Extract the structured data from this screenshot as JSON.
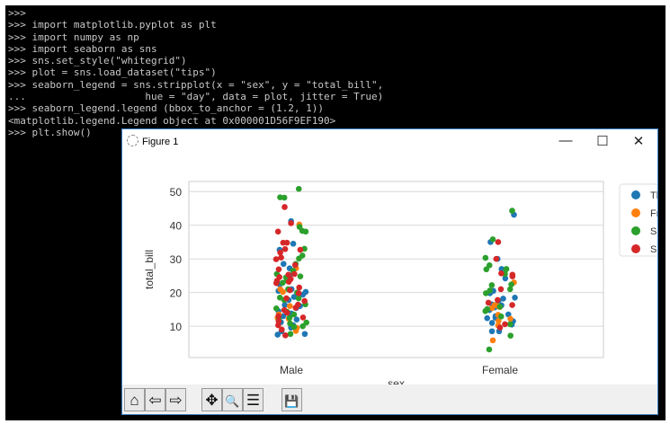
{
  "terminal": {
    "lines": [
      ">>>",
      ">>> import matplotlib.pyplot as plt",
      ">>> import numpy as np",
      ">>> import seaborn as sns",
      ">>> sns.set_style(\"whitegrid\")",
      ">>> plot = sns.load_dataset(\"tips\")",
      ">>> seaborn_legend = sns.stripplot(x = \"sex\", y = \"total_bill\",",
      "...                    hue = \"day\", data = plot, jitter = True)",
      ">>> seaborn_legend.legend (bbox_to_anchor = (1.2, 1))",
      "<matplotlib.legend.Legend object at 0x000001D56F9EF190>",
      ">>> plt.show()"
    ]
  },
  "window": {
    "title": "Figure 1",
    "minimize": "—",
    "maximize": "☐",
    "close": "✕"
  },
  "toolbar": {
    "icons": [
      "home-icon",
      "back-icon",
      "forward-icon",
      "pan-icon",
      "zoom-icon",
      "configure-icon",
      "save-icon"
    ],
    "glyphs": [
      "⌂",
      "⇦",
      "⇨",
      "✥",
      "🔍",
      "☰",
      "💾"
    ]
  },
  "chart_data": {
    "type": "scatter",
    "subtype": "stripplot",
    "xlabel": "sex",
    "ylabel": "total_bill",
    "categories": [
      "Male",
      "Female"
    ],
    "yticks": [
      10,
      20,
      30,
      40,
      50
    ],
    "ylim": [
      0.7,
      53
    ],
    "grid": true,
    "legend_placement": "outside-right",
    "series": [
      {
        "name": "Thur",
        "color": "#1f77b4",
        "values": {
          "Male": [
            41.2,
            34.5,
            32.7,
            28.5,
            27.2,
            21,
            20.5,
            19.4,
            18.7,
            17.8,
            16.3,
            16,
            15.4,
            14.5,
            13.8,
            13,
            12,
            11.2,
            10.3,
            9.6,
            8.5,
            7.5,
            7.7,
            20.2,
            22.4,
            25.1
          ],
          "Female": [
            43.1,
            35,
            30,
            27,
            24.2,
            20.5,
            19.8,
            18.5,
            17.5,
            16.5,
            16.2,
            15.6,
            14.8,
            13.5,
            13,
            12.5,
            12.4,
            11.5,
            11,
            10.5,
            8.5,
            8.5,
            18.2,
            16.5
          ]
        }
      },
      {
        "name": "Fri",
        "color": "#ff7f0e",
        "values": {
          "Male": [
            40.2,
            27.2,
            21,
            20.2,
            16,
            13.5,
            12.5,
            12.2,
            9.5,
            8.6
          ],
          "Female": [
            23,
            16.3,
            16,
            15.7,
            13.4,
            12.2,
            11.6,
            10.2,
            5.8,
            15.4
          ]
        }
      },
      {
        "name": "Sat",
        "color": "#2ca02c",
        "values": {
          "Male": [
            50.8,
            48.3,
            48.2,
            39.5,
            38.3,
            38.1,
            33,
            31,
            30.1,
            28.5,
            26.5,
            25.5,
            24.5,
            23.6,
            22.9,
            21,
            20,
            18.3,
            17.8,
            16.5,
            15.3,
            14.3,
            13.5,
            12.5,
            12,
            11.1,
            10.8,
            10,
            9.8,
            7.7,
            18.5,
            24.8
          ],
          "Female": [
            44.3,
            35.8,
            30.3,
            28.1,
            27,
            26.9,
            25.5,
            22.4,
            22.2,
            21,
            20.6,
            19.8,
            15.1,
            14.5,
            12.9,
            10.6,
            7.2,
            3.1,
            15.8,
            26.9
          ]
        }
      },
      {
        "name": "Sun",
        "color": "#d62728",
        "values": {
          "Male": [
            45.4,
            40.6,
            38.1,
            34.8,
            34.8,
            32.9,
            32.7,
            31.9,
            30.4,
            29.9,
            28.2,
            26.9,
            25.3,
            24.6,
            24,
            23.2,
            22.8,
            21.5,
            20.7,
            19.8,
            18.3,
            17.5,
            16.4,
            15.5,
            14.8,
            14,
            13,
            12.6,
            11.5,
            10.3,
            9,
            7.3,
            23.5,
            25.5
          ],
          "Female": [
            35,
            30,
            25.7,
            24.8,
            21,
            17.8,
            17,
            16.3,
            10.6,
            9.6,
            25.3
          ]
        }
      }
    ]
  }
}
